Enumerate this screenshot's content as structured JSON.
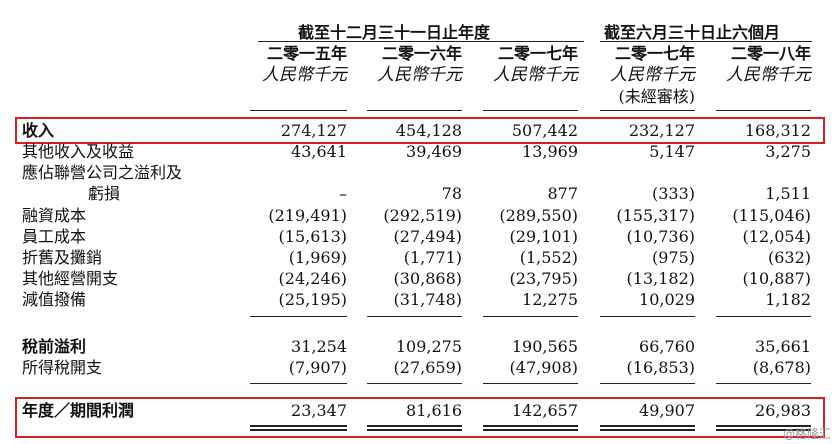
{
  "header": {
    "full_year_group": "截至十二月三十一日止年度",
    "half_year_group": "截至六月三十日止六個月",
    "columns": [
      {
        "year": "二零一五年",
        "currency": "人民幣千元",
        "note": ""
      },
      {
        "year": "二零一六年",
        "currency": "人民幣千元",
        "note": ""
      },
      {
        "year": "二零一七年",
        "currency": "人民幣千元",
        "note": ""
      },
      {
        "year": "二零一七年",
        "currency": "人民幣千元",
        "note": "(未經審核)"
      },
      {
        "year": "二零一八年",
        "currency": "人民幣千元",
        "note": ""
      }
    ]
  },
  "rows": [
    {
      "label": "收入",
      "values": [
        "274,127",
        "454,128",
        "507,442",
        "232,127",
        "168,312"
      ]
    },
    {
      "label": "其他收入及收益",
      "values": [
        "43,641",
        "39,469",
        "13,969",
        "5,147",
        "3,275"
      ]
    },
    {
      "label": "應佔聯營公司之溢利及",
      "values": [
        "",
        "",
        "",
        "",
        ""
      ]
    },
    {
      "label": "虧損",
      "values": [
        "–",
        "78",
        "877",
        "(333)",
        "1,511"
      ]
    },
    {
      "label": "融資成本",
      "values": [
        "(219,491)",
        "(292,519)",
        "(289,550)",
        "(155,317)",
        "(115,046)"
      ]
    },
    {
      "label": "員工成本",
      "values": [
        "(15,613)",
        "(27,494)",
        "(29,101)",
        "(10,736)",
        "(12,054)"
      ]
    },
    {
      "label": "折舊及攤銷",
      "values": [
        "(1,969)",
        "(1,771)",
        "(1,552)",
        "(975)",
        "(632)"
      ]
    },
    {
      "label": "其他經營開支",
      "values": [
        "(24,246)",
        "(30,868)",
        "(23,795)",
        "(13,182)",
        "(10,887)"
      ]
    },
    {
      "label": "減值撥備",
      "values": [
        "(25,195)",
        "(31,748)",
        "12,275",
        "10,029",
        "1,182"
      ]
    },
    {
      "label": "稅前溢利",
      "values": [
        "31,254",
        "109,275",
        "190,565",
        "66,760",
        "35,661"
      ]
    },
    {
      "label": "所得稅開支",
      "values": [
        "(7,907)",
        "(27,659)",
        "(47,908)",
        "(16,853)",
        "(8,678)"
      ]
    },
    {
      "label": "年度／期間利潤",
      "values": [
        "23,347",
        "81,616",
        "142,657",
        "49,907",
        "26,983"
      ]
    }
  ],
  "watermark": "@格隆汇",
  "colors": {
    "highlight": "#d21f26",
    "text": "#111111"
  }
}
